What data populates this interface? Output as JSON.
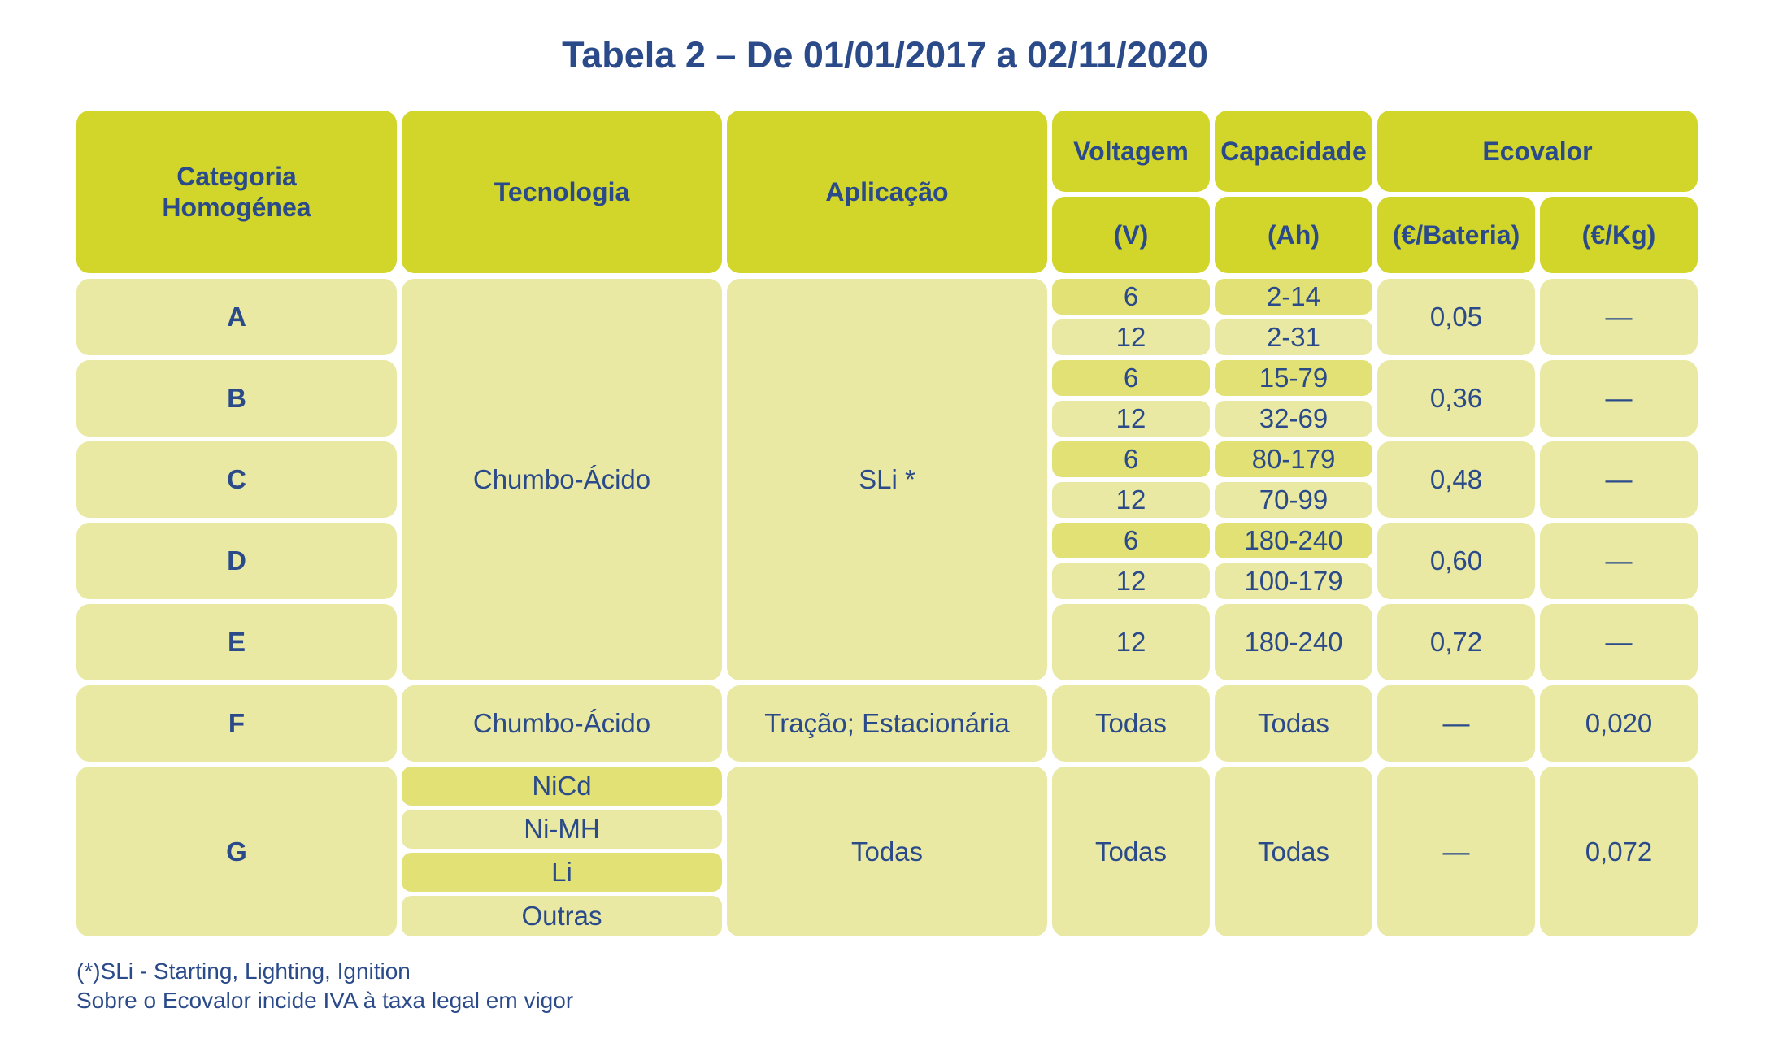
{
  "title": "Tabela 2 – De 01/01/2017 a 02/11/2020",
  "headers": {
    "categoria": "Categoria\nHomogénea",
    "tecnologia": "Tecnologia",
    "aplicacao": "Aplicação",
    "voltagem": "Voltagem",
    "voltagem_unit": "(V)",
    "capacidade": "Capacidade",
    "capacidade_unit": "(Ah)",
    "ecovalor": "Ecovalor",
    "ecovalor_bateria": "(€/Bateria)",
    "ecovalor_kg": "(€/Kg)"
  },
  "rows": [
    {
      "categoria": "A",
      "voltagens": [
        "6",
        "12"
      ],
      "capacidades": [
        "2-14",
        "2-31"
      ],
      "bateria": "0,05",
      "kg": "—"
    },
    {
      "categoria": "B",
      "voltagens": [
        "6",
        "12"
      ],
      "capacidades": [
        "15-79",
        "32-69"
      ],
      "bateria": "0,36",
      "kg": "—"
    },
    {
      "categoria": "C",
      "voltagens": [
        "6",
        "12"
      ],
      "capacidades": [
        "80-179",
        "70-99"
      ],
      "bateria": "0,48",
      "kg": "—"
    },
    {
      "categoria": "D",
      "voltagens": [
        "6",
        "12"
      ],
      "capacidades": [
        "180-240",
        "100-179"
      ],
      "bateria": "0,60",
      "kg": "—"
    },
    {
      "categoria": "E",
      "voltagem": "12",
      "capacidade": "180-240",
      "bateria": "0,72",
      "kg": "—"
    },
    {
      "categoria": "F",
      "tecnologia": "Chumbo-Ácido",
      "aplicacao": "Tração; Estacionária",
      "voltagem": "Todas",
      "capacidade": "Todas",
      "bateria": "—",
      "kg": "0,020"
    },
    {
      "categoria": "G",
      "tecnologias": [
        "NiCd",
        "Ni-MH",
        "Li",
        "Outras"
      ],
      "aplicacao": "Todas",
      "voltagem": "Todas",
      "capacidade": "Todas",
      "bateria": "—",
      "kg": "0,072"
    }
  ],
  "group_ae": {
    "tecnologia": "Chumbo-Ácido",
    "aplicacao": "SLi *"
  },
  "footnotes": [
    "(*)SLi - Starting, Lighting, Ignition",
    "Sobre o Ecovalor incide IVA à taxa legal em vigor"
  ]
}
